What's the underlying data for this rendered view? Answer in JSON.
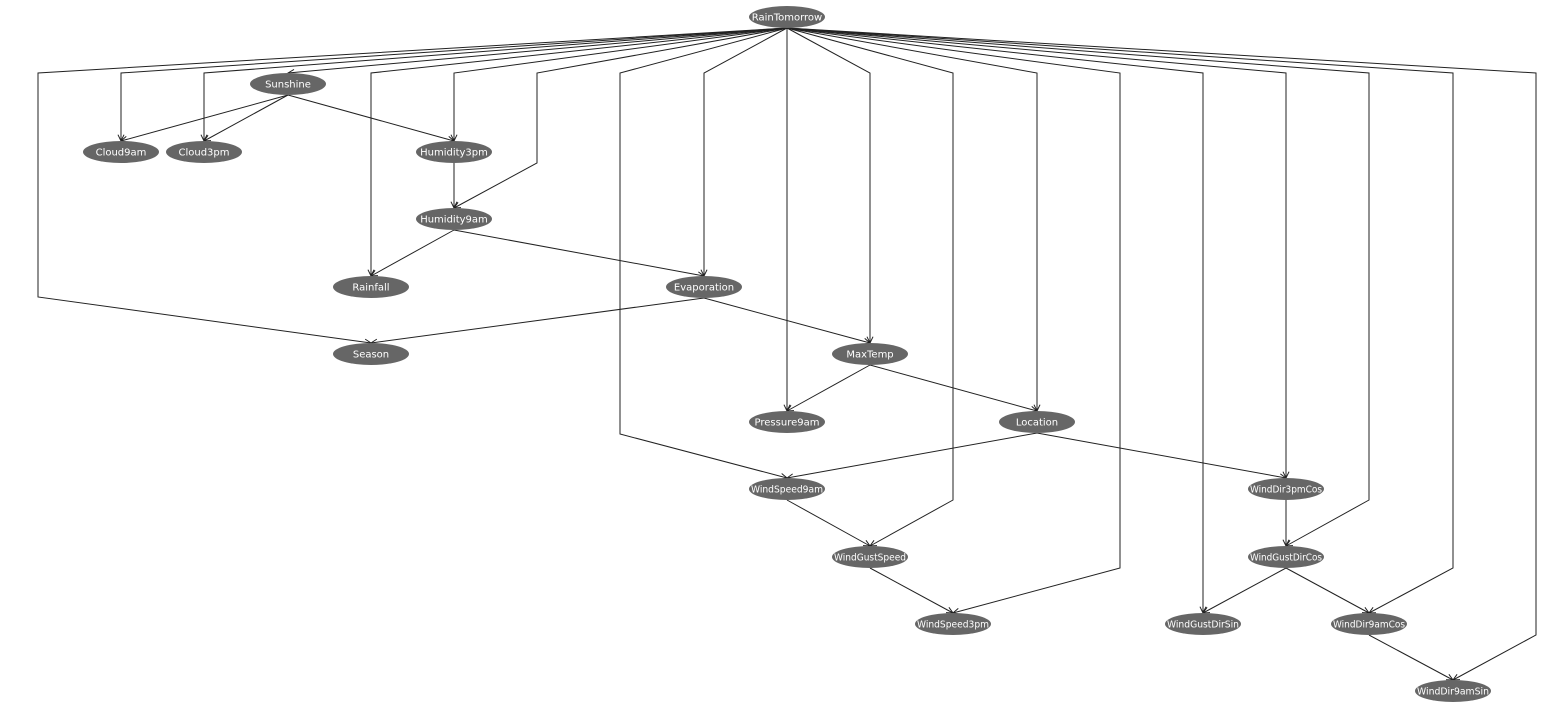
{
  "diagram": {
    "type": "bayesian-network",
    "nodes": [
      {
        "id": "RainTomorrow",
        "label": "RainTomorrow"
      },
      {
        "id": "Sunshine",
        "label": "Sunshine"
      },
      {
        "id": "Cloud9am",
        "label": "Cloud9am"
      },
      {
        "id": "Cloud3pm",
        "label": "Cloud3pm"
      },
      {
        "id": "Humidity3pm",
        "label": "Humidity3pm"
      },
      {
        "id": "Humidity9am",
        "label": "Humidity9am"
      },
      {
        "id": "Rainfall",
        "label": "Rainfall"
      },
      {
        "id": "Evaporation",
        "label": "Evaporation"
      },
      {
        "id": "Season",
        "label": "Season"
      },
      {
        "id": "MaxTemp",
        "label": "MaxTemp"
      },
      {
        "id": "Pressure9am",
        "label": "Pressure9am"
      },
      {
        "id": "Location",
        "label": "Location"
      },
      {
        "id": "WindSpeed9am",
        "label": "WindSpeed9am"
      },
      {
        "id": "WindDir3pmCos",
        "label": "WindDir3pmCos"
      },
      {
        "id": "WindGustSpeed",
        "label": "WindGustSpeed"
      },
      {
        "id": "WindGustDirCos",
        "label": "WindGustDirCos"
      },
      {
        "id": "WindSpeed3pm",
        "label": "WindSpeed3pm"
      },
      {
        "id": "WindGustDirSin",
        "label": "WindGustDirSin"
      },
      {
        "id": "WindDir9amCos",
        "label": "WindDir9amCos"
      },
      {
        "id": "WindDir9amSin",
        "label": "WindDir9amSin"
      }
    ],
    "edges": [
      {
        "from": "RainTomorrow",
        "to": "Season"
      },
      {
        "from": "RainTomorrow",
        "to": "Cloud9am"
      },
      {
        "from": "RainTomorrow",
        "to": "Cloud3pm"
      },
      {
        "from": "RainTomorrow",
        "to": "Sunshine"
      },
      {
        "from": "RainTomorrow",
        "to": "Rainfall"
      },
      {
        "from": "RainTomorrow",
        "to": "Humidity3pm"
      },
      {
        "from": "RainTomorrow",
        "to": "Humidity9am"
      },
      {
        "from": "RainTomorrow",
        "to": "WindSpeed9am"
      },
      {
        "from": "RainTomorrow",
        "to": "Evaporation"
      },
      {
        "from": "RainTomorrow",
        "to": "Pressure9am"
      },
      {
        "from": "RainTomorrow",
        "to": "MaxTemp"
      },
      {
        "from": "RainTomorrow",
        "to": "WindGustSpeed"
      },
      {
        "from": "RainTomorrow",
        "to": "Location"
      },
      {
        "from": "RainTomorrow",
        "to": "WindSpeed3pm"
      },
      {
        "from": "RainTomorrow",
        "to": "WindGustDirSin"
      },
      {
        "from": "RainTomorrow",
        "to": "WindDir3pmCos"
      },
      {
        "from": "RainTomorrow",
        "to": "WindGustDirCos"
      },
      {
        "from": "RainTomorrow",
        "to": "WindDir9amCos"
      },
      {
        "from": "RainTomorrow",
        "to": "WindDir9amSin"
      },
      {
        "from": "Sunshine",
        "to": "Cloud9am"
      },
      {
        "from": "Sunshine",
        "to": "Cloud3pm"
      },
      {
        "from": "Sunshine",
        "to": "Humidity3pm"
      },
      {
        "from": "Humidity3pm",
        "to": "Humidity9am"
      },
      {
        "from": "Humidity9am",
        "to": "Rainfall"
      },
      {
        "from": "Humidity9am",
        "to": "Evaporation"
      },
      {
        "from": "Evaporation",
        "to": "Season"
      },
      {
        "from": "Evaporation",
        "to": "MaxTemp"
      },
      {
        "from": "MaxTemp",
        "to": "Pressure9am"
      },
      {
        "from": "MaxTemp",
        "to": "Location"
      },
      {
        "from": "Location",
        "to": "WindSpeed9am"
      },
      {
        "from": "Location",
        "to": "WindDir3pmCos"
      },
      {
        "from": "WindSpeed9am",
        "to": "WindGustSpeed"
      },
      {
        "from": "WindGustSpeed",
        "to": "WindSpeed3pm"
      },
      {
        "from": "WindDir3pmCos",
        "to": "WindGustDirCos"
      },
      {
        "from": "WindGustDirCos",
        "to": "WindGustDirSin"
      },
      {
        "from": "WindGustDirCos",
        "to": "WindDir9amCos"
      },
      {
        "from": "WindDir9amCos",
        "to": "WindDir9amSin"
      }
    ]
  },
  "colors": {
    "node_fill": "#666666",
    "node_text": "#ffffff",
    "edge": "#222222",
    "background": "#ffffff"
  }
}
